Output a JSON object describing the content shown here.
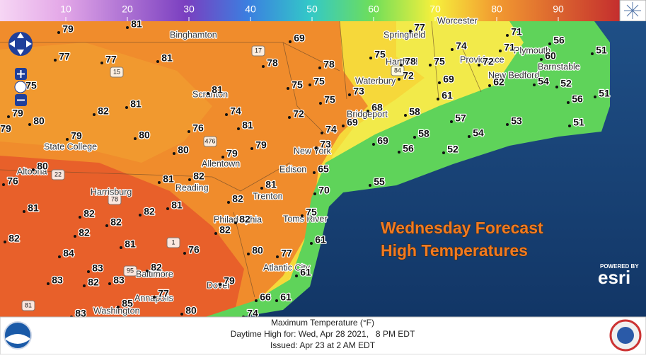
{
  "legend": {
    "lim": [
      0,
      100
    ],
    "ticks": [
      10,
      20,
      30,
      40,
      50,
      60,
      70,
      80,
      90
    ]
  },
  "map": {
    "temperatures": [
      79,
      81,
      69,
      77,
      71,
      56,
      51,
      77,
      77,
      81,
      78,
      78,
      75,
      78,
      75,
      74,
      71,
      72,
      60,
      75,
      72,
      69,
      75,
      75,
      73,
      81,
      62,
      54,
      52,
      61,
      56,
      51,
      79,
      82,
      81,
      74,
      72,
      75,
      68,
      58,
      57,
      53,
      79,
      80,
      80,
      76,
      81,
      74,
      69,
      58,
      54,
      51,
      79,
      79,
      79,
      80,
      73,
      69,
      56,
      52,
      80,
      65,
      82,
      81,
      76,
      81,
      55,
      70,
      82,
      81,
      82,
      82,
      81,
      82,
      82,
      82,
      75,
      82,
      82,
      81,
      61,
      76,
      84,
      80,
      77,
      83,
      82,
      61,
      83,
      82,
      83,
      79,
      77,
      66,
      61,
      85,
      80,
      83,
      74
    ],
    "cities": [
      "Binghamton",
      "Springfield",
      "Worcester",
      "Hartford",
      "Providence",
      "Plymouth",
      "Barnstable",
      "New Bedford",
      "Waterbury",
      "Scranton",
      "Bridgeport",
      "State College",
      "New York",
      "Allentown",
      "Edison",
      "Altoona",
      "Harrisburg",
      "Reading",
      "Trenton",
      "Philadelphia",
      "Toms River",
      "Atlantic City",
      "Baltimore",
      "Dover",
      "Annapolis",
      "Washington"
    ],
    "highways": [
      "17",
      "15",
      "84",
      "476",
      "78",
      "22",
      "1",
      "95",
      "81"
    ]
  },
  "overlay": {
    "title": "Wednesday Forecast",
    "subtitle": "High Temperatures"
  },
  "attribution": {
    "powered_by": "POWERED BY",
    "brand": "esri"
  },
  "footer": {
    "parameter": "Maximum Temperature (°F)",
    "valid": "Daytime High for: Wed, Apr 28 2021,   8 PM EDT",
    "issued": "Issued: Apr 23 at 2 AM EDT"
  }
}
